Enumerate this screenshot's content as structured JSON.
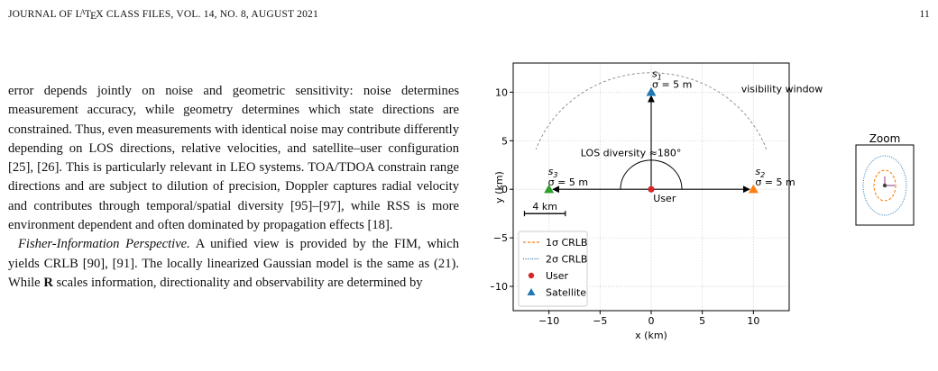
{
  "header": {
    "journal_title": "JOURNAL OF L",
    "latex_A": "A",
    "latex_T": "T",
    "latex_E": "E",
    "latex_X": "X",
    "journal_rest": " CLASS FILES, VOL. 14, NO. 8, AUGUST 2021",
    "page_number": "11"
  },
  "body": {
    "paragraph_1": "error depends jointly on noise and geometric sensitivity: noise determines measurement accuracy, while geometry determines which state directions are constrained. Thus, even measurements with identical noise may contribute differently depending on LOS directions, relative velocities, and satellite–user configuration [25], [26]. This is particularly relevant in LEO systems. TOA/TDOA constrain range directions and are subject to dilution of precision, Doppler captures radial velocity and contributes through temporal/spatial diversity [95]–[97], while RSS is more environment dependent and often dominated by propagation effects [18].",
    "paragraph_2_heading": "Fisher-Information Perspective.",
    "paragraph_2_text": " A unified view is provided by the FIM, which yields CRLB [90], [91]. The locally linearized Gaussian model is the same as (21). While ",
    "paragraph_2_bold": "R",
    "paragraph_2_tail": " scales information, directionality and observability are determined by"
  },
  "chart_data": {
    "type": "scatter",
    "xlabel": "x (km)",
    "ylabel": "y (km)",
    "xlim": [
      -13.5,
      13.5
    ],
    "ylim": [
      -12.5,
      13
    ],
    "xticks": [
      -10,
      -5,
      0,
      5,
      10
    ],
    "yticks": [
      -10,
      -5,
      0,
      5,
      10
    ],
    "grid": true,
    "legend_position": "lower-left",
    "user": {
      "label": "User",
      "x": 0,
      "y": 0,
      "color": "#d62728"
    },
    "satellites": [
      {
        "id": "s1",
        "label_main": "s",
        "label_sub": "1",
        "sigma_label": "σ = 5 m",
        "x": 0,
        "y": 10,
        "color": "#1f77b4"
      },
      {
        "id": "s2",
        "label_main": "s",
        "label_sub": "2",
        "sigma_label": "σ = 5 m",
        "x": 10,
        "y": 0,
        "color": "#ff7f0e"
      },
      {
        "id": "s3",
        "label_main": "s",
        "label_sub": "3",
        "sigma_label": "σ = 5 m",
        "x": -10,
        "y": 0,
        "color": "#2ca02c"
      }
    ],
    "visibility_window": {
      "label": "visibility window",
      "radius": 12,
      "angle_start_deg": 20,
      "angle_end_deg": 160
    },
    "los_diversity_label": "LOS diversity ≈180°",
    "los_arc_radius": 3,
    "scale_bar": {
      "label": "4 km",
      "x_start": -12.4,
      "x_end": -8.4,
      "y": -2.5
    },
    "legend": [
      {
        "label": "1σ CRLB",
        "style": "dashed",
        "color": "#ff7f0e"
      },
      {
        "label": "2σ CRLB",
        "style": "dotted",
        "color": "#1f77b4"
      },
      {
        "label": "User",
        "style": "circle",
        "color": "#d62728"
      },
      {
        "label": "Satellite",
        "style": "triangle",
        "color": "#1f77b4"
      }
    ],
    "zoom_inset": {
      "title": "Zoom"
    }
  }
}
